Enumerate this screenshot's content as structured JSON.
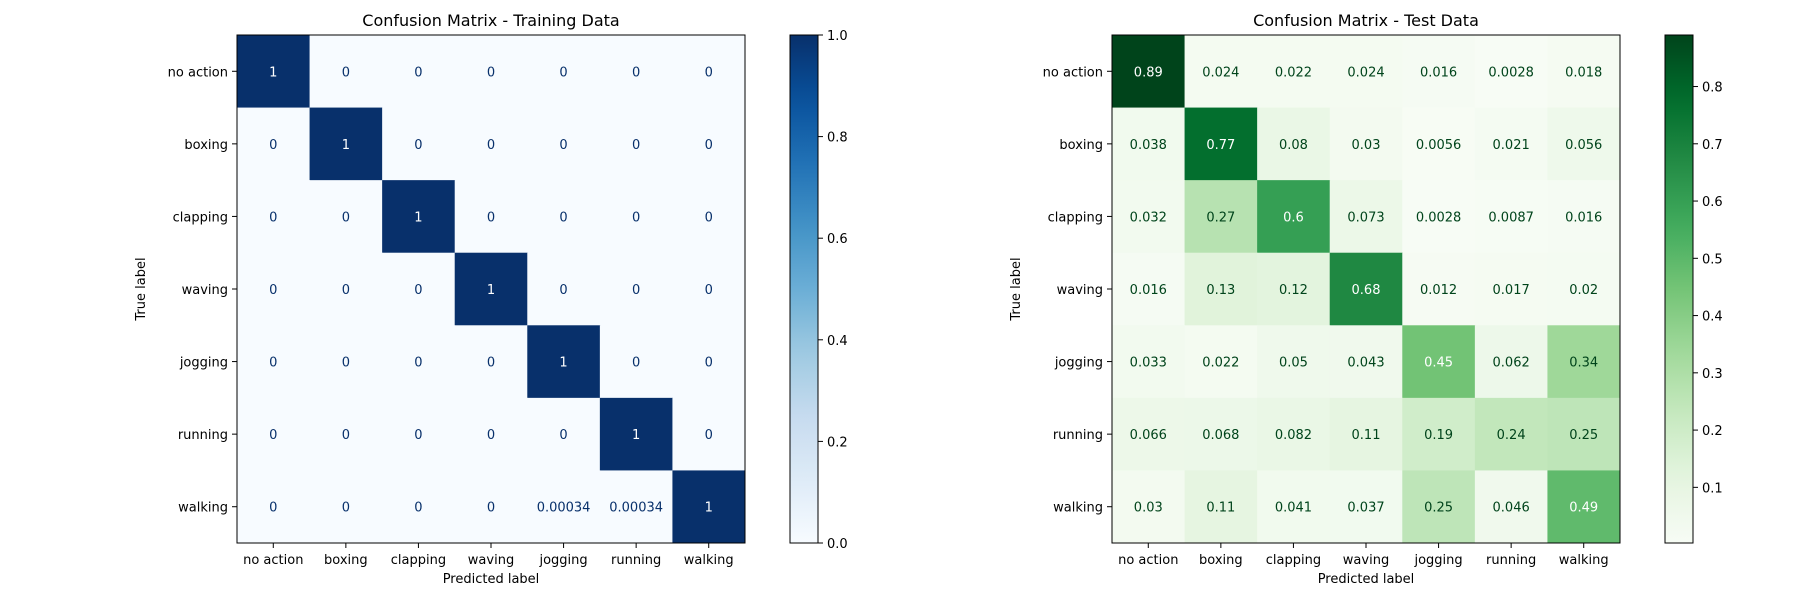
{
  "chart_data": [
    {
      "type": "heatmap",
      "title": "Confusion Matrix - Training Data",
      "xlabel": "Predicted label",
      "ylabel": "True label",
      "x_categories": [
        "no action",
        "boxing",
        "clapping",
        "waving",
        "jogging",
        "running",
        "walking"
      ],
      "y_categories": [
        "no action",
        "boxing",
        "clapping",
        "waving",
        "jogging",
        "running",
        "walking"
      ],
      "values": [
        [
          1,
          0,
          0,
          0,
          0,
          0,
          0
        ],
        [
          0,
          1,
          0,
          0,
          0,
          0,
          0
        ],
        [
          0,
          0,
          1,
          0,
          0,
          0,
          0
        ],
        [
          0,
          0,
          0,
          1,
          0,
          0,
          0
        ],
        [
          0,
          0,
          0,
          0,
          1,
          0,
          0
        ],
        [
          0,
          0,
          0,
          0,
          0,
          1,
          0
        ],
        [
          0,
          0,
          0,
          0,
          0.00034,
          0.00034,
          1
        ]
      ],
      "cell_labels": [
        [
          "1",
          "0",
          "0",
          "0",
          "0",
          "0",
          "0"
        ],
        [
          "0",
          "1",
          "0",
          "0",
          "0",
          "0",
          "0"
        ],
        [
          "0",
          "0",
          "1",
          "0",
          "0",
          "0",
          "0"
        ],
        [
          "0",
          "0",
          "0",
          "1",
          "0",
          "0",
          "0"
        ],
        [
          "0",
          "0",
          "0",
          "0",
          "1",
          "0",
          "0"
        ],
        [
          "0",
          "0",
          "0",
          "0",
          "0",
          "1",
          "0"
        ],
        [
          "0",
          "0",
          "0",
          "0",
          "0.00034",
          "0.00034",
          "1"
        ]
      ],
      "colormap": "Blues",
      "color_low": "#f7fbff",
      "color_high": "#08306b",
      "text_dark": "#08306b",
      "text_light": "#ffffff",
      "colorbar": {
        "range": [
          0,
          1
        ],
        "ticks": [
          0,
          0.2,
          0.4,
          0.6,
          0.8,
          1
        ],
        "tick_labels": [
          "0.0",
          "0.2",
          "0.4",
          "0.6",
          "0.8",
          "1.0"
        ]
      }
    },
    {
      "type": "heatmap",
      "title": "Confusion Matrix - Test Data",
      "xlabel": "Predicted label",
      "ylabel": "True label",
      "x_categories": [
        "no action",
        "boxing",
        "clapping",
        "waving",
        "jogging",
        "running",
        "walking"
      ],
      "y_categories": [
        "no action",
        "boxing",
        "clapping",
        "waving",
        "jogging",
        "running",
        "walking"
      ],
      "values": [
        [
          0.89,
          0.024,
          0.022,
          0.024,
          0.016,
          0.0028,
          0.018
        ],
        [
          0.038,
          0.77,
          0.08,
          0.03,
          0.0056,
          0.021,
          0.056
        ],
        [
          0.032,
          0.27,
          0.6,
          0.073,
          0.0028,
          0.0087,
          0.016
        ],
        [
          0.016,
          0.13,
          0.12,
          0.68,
          0.012,
          0.017,
          0.02
        ],
        [
          0.033,
          0.022,
          0.05,
          0.043,
          0.45,
          0.062,
          0.34
        ],
        [
          0.066,
          0.068,
          0.082,
          0.11,
          0.19,
          0.24,
          0.25
        ],
        [
          0.03,
          0.11,
          0.041,
          0.037,
          0.25,
          0.046,
          0.49
        ]
      ],
      "cell_labels": [
        [
          "0.89",
          "0.024",
          "0.022",
          "0.024",
          "0.016",
          "0.0028",
          "0.018"
        ],
        [
          "0.038",
          "0.77",
          "0.08",
          "0.03",
          "0.0056",
          "0.021",
          "0.056"
        ],
        [
          "0.032",
          "0.27",
          "0.6",
          "0.073",
          "0.0028",
          "0.0087",
          "0.016"
        ],
        [
          "0.016",
          "0.13",
          "0.12",
          "0.68",
          "0.012",
          "0.017",
          "0.02"
        ],
        [
          "0.033",
          "0.022",
          "0.05",
          "0.043",
          "0.45",
          "0.062",
          "0.34"
        ],
        [
          "0.066",
          "0.068",
          "0.082",
          "0.11",
          "0.19",
          "0.24",
          "0.25"
        ],
        [
          "0.03",
          "0.11",
          "0.041",
          "0.037",
          "0.25",
          "0.046",
          "0.49"
        ]
      ],
      "colormap": "Greens",
      "color_low": "#f7fcf5",
      "color_high": "#00441b",
      "text_dark": "#00441b",
      "text_light": "#ffffff",
      "colorbar": {
        "range": [
          0.0028,
          0.89
        ],
        "ticks": [
          0.1,
          0.2,
          0.3,
          0.4,
          0.5,
          0.6,
          0.7,
          0.8
        ],
        "tick_labels": [
          "0.1",
          "0.2",
          "0.3",
          "0.4",
          "0.5",
          "0.6",
          "0.7",
          "0.8"
        ]
      }
    }
  ]
}
